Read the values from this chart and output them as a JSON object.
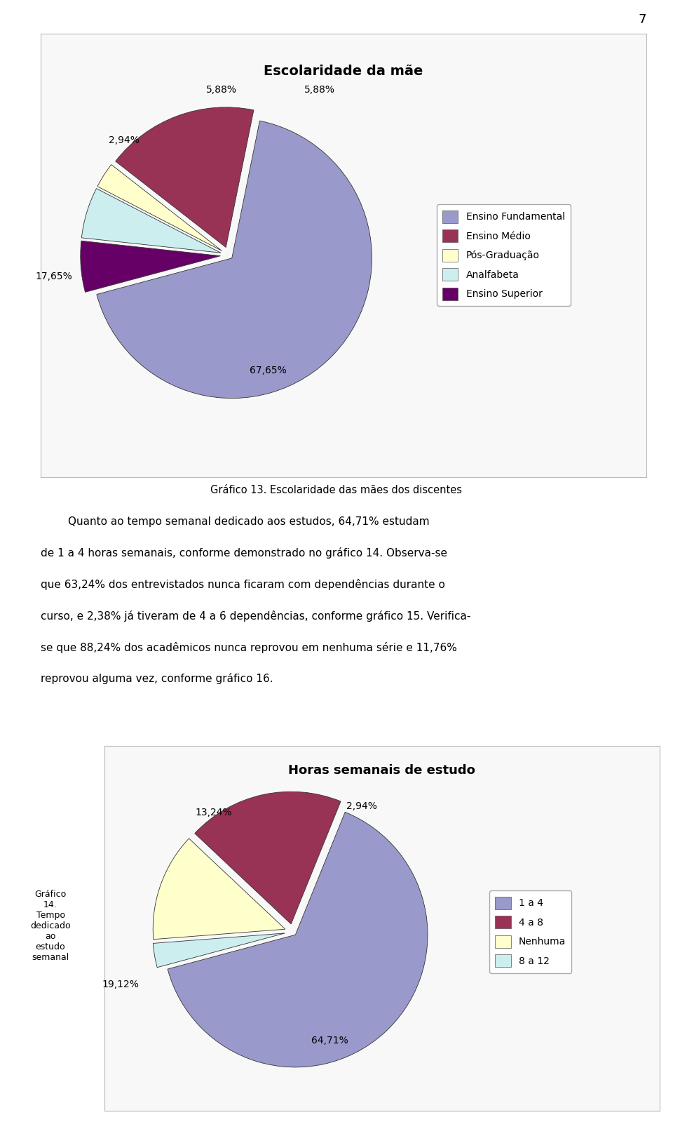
{
  "page_number": "7",
  "chart1": {
    "title": "Escolaridade da mãe",
    "slices": [
      67.65,
      17.65,
      2.94,
      5.88,
      5.88
    ],
    "labels": [
      "67,65%",
      "17,65%",
      "2,94%",
      "5,88%",
      "5,88%"
    ],
    "legend_labels": [
      "Ensino Fundamental",
      "Ensino Médio",
      "Pós-Graduação",
      "Analfabeta",
      "Ensino Superior"
    ],
    "colors": [
      "#9999cc",
      "#993355",
      "#ffffcc",
      "#cceeee",
      "#660066"
    ],
    "explode": [
      0.03,
      0.06,
      0.06,
      0.06,
      0.06
    ],
    "startangle": 195,
    "caption": "Gráfico 13. Escolaridade das mães dos discentes"
  },
  "body_lines": [
    "        Quanto ao tempo semanal dedicado aos estudos, 64,71% estudam",
    "de 1 a 4 horas semanais, conforme demonstrado no gráfico 14. Observa-se",
    "que 63,24% dos entrevistados nunca ficaram com dependências durante o",
    "curso, e 2,38% já tiveram de 4 a 6 dependências, conforme gráfico 15. Verifica-",
    "se que 88,24% dos acadêmicos nunca reprovou em nenhuma série e 11,76%",
    "reprovou alguma vez, conforme gráfico 16."
  ],
  "chart2": {
    "title": "Horas semanais de estudo",
    "slices": [
      64.71,
      19.12,
      13.24,
      2.94
    ],
    "labels": [
      "64,71%",
      "19,12%",
      "13,24%",
      "2,94%"
    ],
    "legend_labels": [
      "1 a 4",
      "4 a 8",
      "Nenhuma",
      "8 a 12"
    ],
    "colors": [
      "#9999cc",
      "#993355",
      "#ffffcc",
      "#cceeee"
    ],
    "explode": [
      0.03,
      0.06,
      0.06,
      0.06
    ],
    "startangle": 195,
    "side_label": "Gráfico\n14.\nTempo\ndedicado\nao\nestudo\nsemanal"
  },
  "background_color": "#ffffff",
  "text_color": "#000000",
  "chart_bg": "#f8f8f8"
}
